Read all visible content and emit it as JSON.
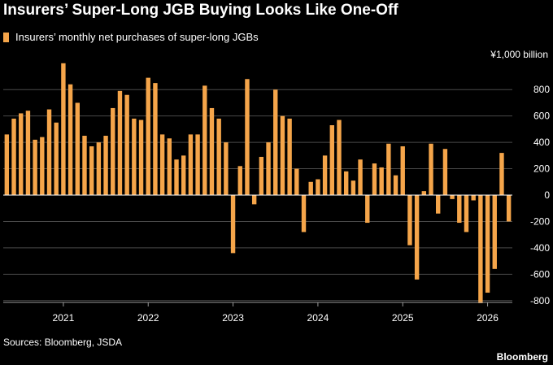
{
  "header": {
    "title": "Insurers’ Super-Long JGB Buying Looks Like One-Off"
  },
  "footer": {
    "source": "Sources: Bloomberg, JSDA",
    "brand": "Bloomberg"
  },
  "colors": {
    "background": "#000000",
    "bar": "#f5a54a",
    "grid": "#4a4a4a",
    "zero_line": "#ffffff",
    "text": "#ffffff"
  },
  "chart_data": {
    "type": "bar",
    "title": "Insurers’ Super-Long JGB Buying Looks Like One-Off",
    "unit_label": "¥1,000 billion",
    "xlabel": "",
    "ylabel": "",
    "ylim": [
      -820,
      1000
    ],
    "yticks": [
      800,
      600,
      400,
      200,
      0,
      -200,
      -400,
      -600,
      -800
    ],
    "ytick_labels": [
      "800",
      "600",
      "400",
      "200",
      "0",
      "-200",
      "-400",
      "-600",
      "-800"
    ],
    "grid": true,
    "legend_position": "top-left",
    "x_start": "2020-05",
    "xtick_labels": [
      "2021",
      "2022",
      "2023",
      "2024",
      "2025",
      "2026"
    ],
    "xtick_months": [
      "2021-01",
      "2022-01",
      "2023-01",
      "2024-01",
      "2025-01",
      "2026-01"
    ],
    "series": [
      {
        "name": "Insurers’ monthly net purchases of super-long JGBs",
        "values": [
          460,
          580,
          620,
          640,
          420,
          440,
          650,
          550,
          1000,
          840,
          700,
          450,
          370,
          400,
          450,
          660,
          790,
          760,
          580,
          570,
          890,
          850,
          460,
          430,
          270,
          300,
          460,
          460,
          830,
          660,
          580,
          400,
          -440,
          220,
          880,
          -70,
          290,
          400,
          800,
          600,
          580,
          200,
          -280,
          100,
          120,
          300,
          530,
          570,
          180,
          110,
          270,
          -210,
          240,
          210,
          390,
          150,
          370,
          -380,
          -640,
          30,
          390,
          -140,
          350,
          -30,
          -210,
          -280,
          -40,
          -820,
          -740,
          -560,
          320,
          -200
        ]
      }
    ]
  }
}
